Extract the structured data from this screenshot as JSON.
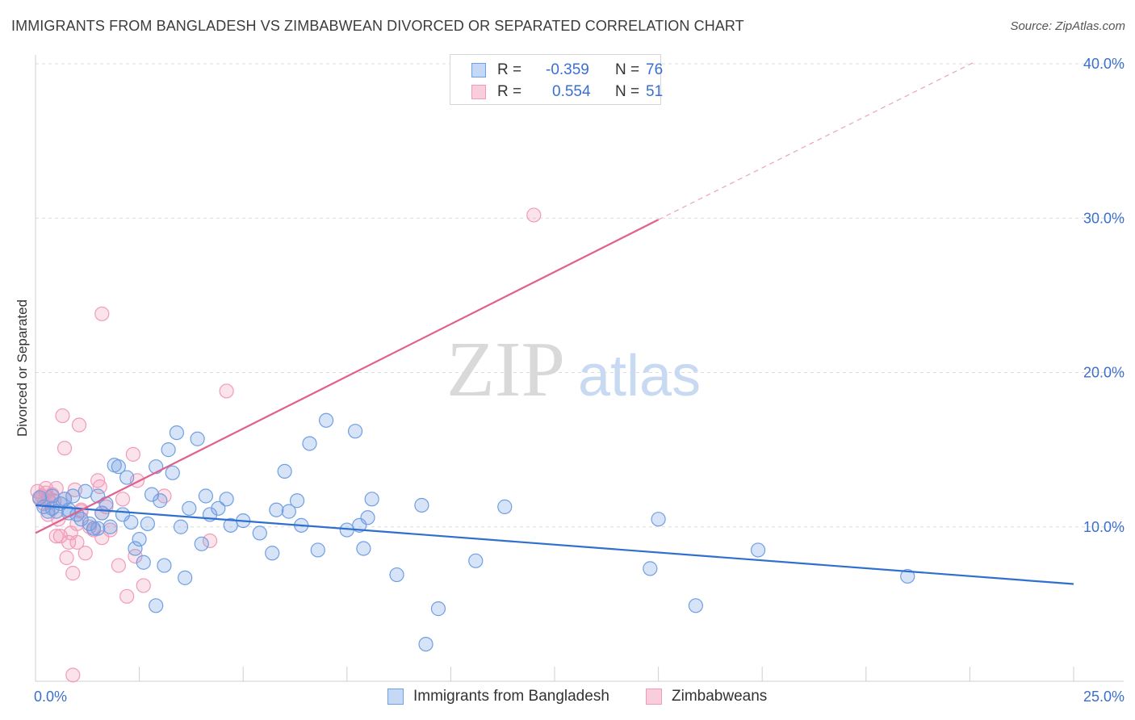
{
  "header": {
    "title": "IMMIGRANTS FROM BANGLADESH VS ZIMBABWEAN DIVORCED OR SEPARATED CORRELATION CHART",
    "source": "Source: ZipAtlas.com"
  },
  "watermark": {
    "zip": "ZIP",
    "atlas": "atlas"
  },
  "legend_top": {
    "rows": [
      {
        "r_label": "R =",
        "r_value": "-0.359",
        "n_label": "N =",
        "n_value": "76"
      },
      {
        "r_label": "R =",
        "r_value": "0.554",
        "n_label": "N =",
        "n_value": "51"
      }
    ]
  },
  "legend_bottom": {
    "items": [
      {
        "label": "Immigrants from Bangladesh"
      },
      {
        "label": "Zimbabweans"
      }
    ]
  },
  "chart_data": {
    "type": "scatter",
    "title": "IMMIGRANTS FROM BANGLADESH VS ZIMBABWEAN DIVORCED OR SEPARATED CORRELATION CHART",
    "xlabel": "",
    "ylabel": "Divorced or Separated",
    "xlim": [
      0,
      25
    ],
    "ylim": [
      0,
      40
    ],
    "x_tick_labels": [
      "0.0%",
      "25.0%"
    ],
    "y_ticks": [
      10,
      20,
      30,
      40
    ],
    "y_tick_labels": [
      "10.0%",
      "20.0%",
      "30.0%",
      "40.0%"
    ],
    "grid": "horizontal dashed",
    "legend_position": "top-center and bottom",
    "colors": {
      "bangladesh": "#6f9fe3",
      "bangladesh_line": "#2f6fcf",
      "zimbabwe": "#f29bb8",
      "zimbabwe_line": "#e0608e"
    },
    "series": [
      {
        "name": "Immigrants from Bangladesh",
        "color": "#6f9fe3",
        "trend": {
          "x": [
            0,
            25
          ],
          "y": [
            11.4,
            6.3
          ]
        },
        "points": [
          [
            0.1,
            11.9
          ],
          [
            0.2,
            11.3
          ],
          [
            0.3,
            11.0
          ],
          [
            0.4,
            11.2
          ],
          [
            0.5,
            11.0
          ],
          [
            0.6,
            11.5
          ],
          [
            0.7,
            11.8
          ],
          [
            0.8,
            11.1
          ],
          [
            0.9,
            12.0
          ],
          [
            1.0,
            10.8
          ],
          [
            1.1,
            10.5
          ],
          [
            1.2,
            12.3
          ],
          [
            1.3,
            10.2
          ],
          [
            1.4,
            9.9
          ],
          [
            1.5,
            12.0
          ],
          [
            1.6,
            10.9
          ],
          [
            1.7,
            11.5
          ],
          [
            1.8,
            10.0
          ],
          [
            1.9,
            14.0
          ],
          [
            2.0,
            13.9
          ],
          [
            2.1,
            10.8
          ],
          [
            2.2,
            13.2
          ],
          [
            2.3,
            10.3
          ],
          [
            2.4,
            8.6
          ],
          [
            2.5,
            9.2
          ],
          [
            2.6,
            7.7
          ],
          [
            2.7,
            10.2
          ],
          [
            2.8,
            12.1
          ],
          [
            2.9,
            13.9
          ],
          [
            3.0,
            11.7
          ],
          [
            3.1,
            7.5
          ],
          [
            3.2,
            15.0
          ],
          [
            3.3,
            13.5
          ],
          [
            3.4,
            16.1
          ],
          [
            3.5,
            10.0
          ],
          [
            3.6,
            6.7
          ],
          [
            3.7,
            11.2
          ],
          [
            3.9,
            15.7
          ],
          [
            4.0,
            8.9
          ],
          [
            4.1,
            12.0
          ],
          [
            4.2,
            10.8
          ],
          [
            4.4,
            11.2
          ],
          [
            4.6,
            11.8
          ],
          [
            4.7,
            10.1
          ],
          [
            5.0,
            10.4
          ],
          [
            5.4,
            9.6
          ],
          [
            5.7,
            8.3
          ],
          [
            5.8,
            11.1
          ],
          [
            6.0,
            13.6
          ],
          [
            6.1,
            11.0
          ],
          [
            6.3,
            11.7
          ],
          [
            6.4,
            10.1
          ],
          [
            6.6,
            15.4
          ],
          [
            6.8,
            8.5
          ],
          [
            7.0,
            16.9
          ],
          [
            7.5,
            9.8
          ],
          [
            7.7,
            16.2
          ],
          [
            7.8,
            10.1
          ],
          [
            7.9,
            8.6
          ],
          [
            8.0,
            10.6
          ],
          [
            8.1,
            11.8
          ],
          [
            8.7,
            6.9
          ],
          [
            9.3,
            11.4
          ],
          [
            9.4,
            2.4
          ],
          [
            9.7,
            4.7
          ],
          [
            10.6,
            7.8
          ],
          [
            11.3,
            11.3
          ],
          [
            15.0,
            10.5
          ],
          [
            14.8,
            7.3
          ],
          [
            17.4,
            8.5
          ],
          [
            21.0,
            6.8
          ],
          [
            15.9,
            4.9
          ],
          [
            2.9,
            4.9
          ],
          [
            0.8,
            10.9
          ],
          [
            1.5,
            9.9
          ],
          [
            0.4,
            12.0
          ]
        ]
      },
      {
        "name": "Zimbabweans",
        "color": "#f29bb8",
        "trend": {
          "x": [
            0,
            15
          ],
          "y": [
            9.6,
            29.9
          ]
        },
        "trend_extended": {
          "x": [
            15,
            22.6
          ],
          "y": [
            29.9,
            40.1
          ]
        },
        "points": [
          [
            0.05,
            12.3
          ],
          [
            0.1,
            11.8
          ],
          [
            0.15,
            12.0
          ],
          [
            0.2,
            11.5
          ],
          [
            0.25,
            12.2
          ],
          [
            0.3,
            11.9
          ],
          [
            0.35,
            11.6
          ],
          [
            0.4,
            12.1
          ],
          [
            0.45,
            11.7
          ],
          [
            0.5,
            12.5
          ],
          [
            0.55,
            10.5
          ],
          [
            0.6,
            9.4
          ],
          [
            0.65,
            17.2
          ],
          [
            0.7,
            15.1
          ],
          [
            0.75,
            8.0
          ],
          [
            0.8,
            9.0
          ],
          [
            0.85,
            9.6
          ],
          [
            0.9,
            7.0
          ],
          [
            0.95,
            12.4
          ],
          [
            1.0,
            10.2
          ],
          [
            1.05,
            16.6
          ],
          [
            1.1,
            11.1
          ],
          [
            1.2,
            8.3
          ],
          [
            1.3,
            10.0
          ],
          [
            1.4,
            9.8
          ],
          [
            1.5,
            13.0
          ],
          [
            1.55,
            12.6
          ],
          [
            1.6,
            9.3
          ],
          [
            1.7,
            11.3
          ],
          [
            1.8,
            9.8
          ],
          [
            1.6,
            10.9
          ],
          [
            2.0,
            7.5
          ],
          [
            2.1,
            11.8
          ],
          [
            2.2,
            5.5
          ],
          [
            2.35,
            14.7
          ],
          [
            2.4,
            8.1
          ],
          [
            2.45,
            13.0
          ],
          [
            2.6,
            6.2
          ],
          [
            3.1,
            12.0
          ],
          [
            4.2,
            9.1
          ],
          [
            4.6,
            18.8
          ],
          [
            12.0,
            30.2
          ],
          [
            1.6,
            23.8
          ],
          [
            0.3,
            10.8
          ],
          [
            0.7,
            11.8
          ],
          [
            0.5,
            9.4
          ],
          [
            0.9,
            0.4
          ],
          [
            1.0,
            9.0
          ],
          [
            1.1,
            11.0
          ],
          [
            0.25,
            12.5
          ],
          [
            0.15,
            12.0
          ]
        ]
      }
    ]
  }
}
